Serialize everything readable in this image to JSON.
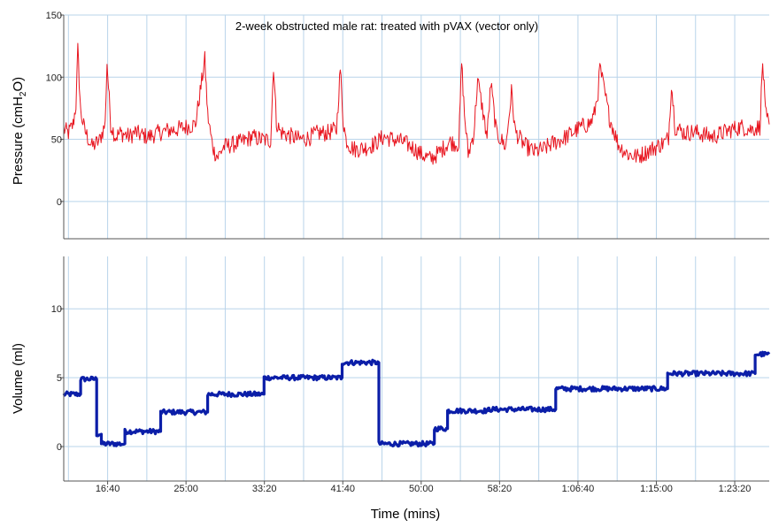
{
  "chart_data": [
    {
      "type": "line",
      "title": "2-week obstructed male rat: treated with pVAX (vector only)",
      "ylabel": "Pressure (cmH2O)",
      "ylabel_main": "Pressure (cmH",
      "ylabel_sub": "2",
      "ylabel_end": "O)",
      "ylim": [
        -30,
        150
      ],
      "yticks": [
        0,
        50,
        100,
        150
      ],
      "grid": true,
      "series": [
        {
          "color": "#e8141e",
          "x": [
            12.0,
            12.5,
            13.0,
            13.3,
            13.5,
            13.8,
            14.2,
            14.8,
            15.0,
            15.8,
            16.4,
            16.6,
            17.0,
            17.5,
            18.0,
            18.5,
            19.0,
            19.6,
            20.0,
            21.0,
            22.0,
            23.0,
            24.0,
            25.0,
            26.0,
            27.0,
            27.3,
            27.7,
            28.0,
            28.4,
            29.0,
            30.0,
            31.0,
            32.0,
            33.0,
            34.0,
            34.3,
            34.6,
            35.0,
            36.0,
            37.0,
            38.0,
            39.0,
            40.0,
            41.0,
            41.4,
            41.7,
            42.0,
            42.5,
            43.0,
            44.0,
            45.0,
            46.0,
            47.0,
            48.0,
            49.0,
            50.0,
            51.0,
            52.0,
            53.0,
            54.0,
            54.3,
            54.6,
            55.0,
            55.6,
            56.0,
            57.0,
            57.4,
            58.0,
            59.0,
            59.6,
            60.0,
            61.0,
            62.0,
            63.0,
            64.0,
            65.0,
            66.0,
            67.0,
            68.0,
            68.4,
            68.8,
            69.0,
            70.0,
            71.0,
            72.0,
            73.0,
            74.0,
            75.0,
            76.0,
            76.3,
            76.6,
            77.0,
            78.0,
            79.0,
            80.0,
            81.0,
            82.0,
            83.0,
            84.0,
            85.0,
            86.0,
            86.3,
            86.6,
            87.0
          ],
          "y": [
            58,
            55,
            62,
            78,
            122,
            72,
            58,
            47,
            44,
            49,
            62,
            112,
            62,
            52,
            55,
            54,
            52,
            56,
            54,
            52,
            55,
            57,
            58,
            60,
            62,
            114,
            70,
            50,
            40,
            36,
            44,
            46,
            48,
            52,
            50,
            49,
            110,
            64,
            56,
            53,
            50,
            51,
            55,
            55,
            58,
            107,
            66,
            50,
            44,
            42,
            43,
            46,
            52,
            50,
            48,
            44,
            38,
            34,
            40,
            48,
            46,
            112,
            70,
            38,
            55,
            98,
            52,
            95,
            55,
            44,
            88,
            56,
            45,
            40,
            42,
            47,
            50,
            55,
            60,
            63,
            70,
            88,
            108,
            68,
            45,
            38,
            36,
            40,
            44,
            48,
            52,
            95,
            60,
            55,
            56,
            54,
            52,
            55,
            58,
            60,
            58,
            60,
            112,
            70,
            62
          ]
        }
      ]
    },
    {
      "type": "line",
      "xlabel": "Time (mins)",
      "ylabel": "Volume (ml)",
      "ylim": [
        -2.5,
        13.8
      ],
      "yticks": [
        0,
        5,
        10
      ],
      "xlim": [
        12.0,
        87.0
      ],
      "xticks": [
        16.6667,
        25.0,
        33.3333,
        41.6667,
        50.0,
        58.3333,
        66.6667,
        75.0,
        83.3333
      ],
      "xtick_labels": [
        "16:40",
        "25:00",
        "33:20",
        "41:40",
        "50:00",
        "58:20",
        "1:06:40",
        "1:15:00",
        "1:23:20"
      ],
      "grid": true,
      "series": [
        {
          "color": "#0b1ea8",
          "x": [
            12.0,
            13.8,
            13.8,
            15.5,
            15.5,
            16.0,
            16.0,
            18.5,
            18.5,
            22.3,
            22.3,
            27.3,
            27.3,
            33.3,
            33.3,
            41.6,
            41.6,
            45.5,
            45.5,
            51.4,
            51.4,
            52.8,
            52.8,
            57.2,
            57.2,
            64.3,
            64.3,
            69.4,
            69.4,
            76.2,
            76.2,
            83.6,
            83.6,
            85.5,
            85.5,
            87.0
          ],
          "y": [
            3.8,
            3.8,
            4.9,
            4.9,
            0.9,
            0.9,
            0.2,
            0.2,
            1.1,
            1.1,
            2.5,
            2.5,
            3.8,
            3.8,
            5.0,
            5.0,
            6.1,
            6.1,
            0.2,
            0.2,
            1.3,
            1.3,
            2.6,
            2.6,
            2.7,
            2.7,
            4.2,
            4.2,
            4.2,
            4.2,
            5.3,
            5.3,
            5.3,
            5.3,
            6.7,
            6.7
          ]
        }
      ]
    }
  ]
}
